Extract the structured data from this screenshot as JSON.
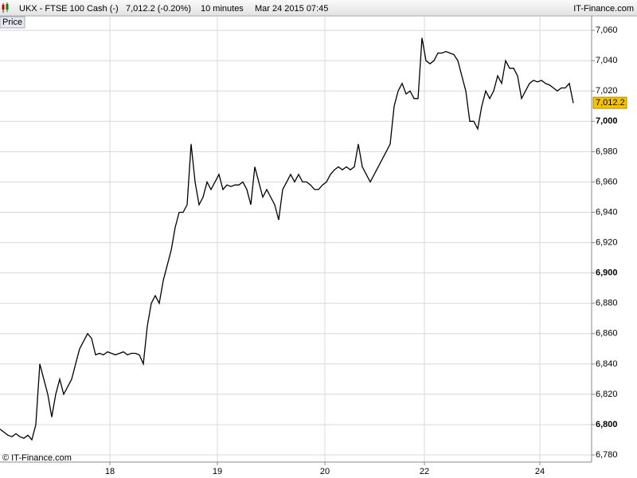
{
  "header": {
    "symbol": "UKX - FTSE 100 Cash (-)",
    "quote": "7,012.2 (-0.20%)",
    "interval": "10 minutes",
    "datetime": "Mar 24 2015 07:45",
    "site": "IT-Finance.com"
  },
  "chart_data": {
    "type": "line",
    "y_axis_label": "Price",
    "watermark": "© IT-Finance.com",
    "color": "#000000",
    "grid": true,
    "x": [
      0,
      1,
      2,
      3,
      4,
      5,
      6,
      7,
      8,
      9,
      10,
      11,
      12,
      13,
      14,
      15,
      16,
      17,
      18,
      19,
      20,
      21,
      22,
      23,
      24,
      25,
      26,
      27,
      28,
      29,
      30,
      31,
      32,
      33,
      34,
      35,
      36,
      37,
      38,
      39,
      40,
      41,
      42,
      43,
      44,
      45,
      46,
      47,
      48,
      49,
      50,
      51,
      52,
      53,
      54,
      55,
      56,
      57,
      58,
      59,
      60,
      61,
      62,
      63,
      64,
      65,
      66,
      67,
      68,
      69,
      70,
      71,
      72,
      73,
      74,
      75,
      76,
      77,
      78,
      79,
      80,
      81,
      82,
      83,
      84,
      85,
      86,
      87,
      88,
      89,
      90,
      91,
      92,
      93,
      94,
      95,
      96,
      97,
      98,
      99,
      100,
      101,
      102,
      103,
      104,
      105,
      106,
      107,
      108,
      109,
      110,
      111,
      112,
      113,
      114,
      115,
      116,
      117,
      118,
      119,
      120,
      121,
      122,
      123,
      124,
      125,
      126,
      127,
      128,
      129,
      130,
      131,
      132,
      133,
      134,
      135,
      136,
      137,
      138,
      139,
      140,
      141,
      142,
      143,
      144
    ],
    "values": [
      6797,
      6795,
      6793,
      6792,
      6794,
      6792,
      6791,
      6793,
      6790,
      6800,
      6840,
      6830,
      6820,
      6805,
      6820,
      6830,
      6820,
      6825,
      6830,
      6840,
      6850,
      6855,
      6860,
      6857,
      6846,
      6847,
      6846,
      6848,
      6847,
      6846,
      6847,
      6848,
      6846,
      6847,
      6847,
      6846,
      6840,
      6865,
      6880,
      6885,
      6880,
      6895,
      6905,
      6915,
      6930,
      6940,
      6940,
      6945,
      6985,
      6960,
      6945,
      6950,
      6960,
      6955,
      6960,
      6965,
      6955,
      6958,
      6957,
      6958,
      6958,
      6960,
      6955,
      6945,
      6970,
      6960,
      6950,
      6955,
      6950,
      6945,
      6935,
      6955,
      6960,
      6965,
      6960,
      6965,
      6960,
      6960,
      6958,
      6955,
      6955,
      6958,
      6960,
      6965,
      6968,
      6970,
      6968,
      6970,
      6968,
      6970,
      6985,
      6970,
      6965,
      6960,
      6965,
      6970,
      6975,
      6980,
      6985,
      7010,
      7020,
      7025,
      7018,
      7020,
      7015,
      7015,
      7055,
      7040,
      7038,
      7040,
      7045,
      7045,
      7046,
      7045,
      7044,
      7040,
      7030,
      7020,
      7000,
      7000,
      6995,
      7010,
      7020,
      7015,
      7020,
      7030,
      7025,
      7040,
      7035,
      7035,
      7030,
      7015,
      7020,
      7025,
      7027,
      7026,
      7027,
      7025,
      7024,
      7022,
      7020,
      7022,
      7022,
      7025,
      7012
    ],
    "last_price": {
      "value": 7012.2,
      "label": "7,012.2"
    },
    "xlim": [
      0,
      148.6
    ],
    "xticks": [
      {
        "value": 27.6,
        "label": "18"
      },
      {
        "value": 54.6,
        "label": "19"
      },
      {
        "value": 81.6,
        "label": "20"
      },
      {
        "value": 106.6,
        "label": "22"
      },
      {
        "value": 135.6,
        "label": "24"
      }
    ],
    "ylim": [
      6775.3,
      7069.5
    ],
    "yticks": [
      {
        "value": 6780,
        "label": "6,780"
      },
      {
        "value": 6800,
        "label": "6,800"
      },
      {
        "value": 6820,
        "label": "6,820"
      },
      {
        "value": 6840,
        "label": "6,840"
      },
      {
        "value": 6860,
        "label": "6,860"
      },
      {
        "value": 6880,
        "label": "6,880"
      },
      {
        "value": 6900,
        "label": "6,900"
      },
      {
        "value": 6920,
        "label": "6,920"
      },
      {
        "value": 6940,
        "label": "6,940"
      },
      {
        "value": 6960,
        "label": "6,960"
      },
      {
        "value": 6980,
        "label": "6,980"
      },
      {
        "value": 7000,
        "label": "7,000"
      },
      {
        "value": 7020,
        "label": "7,020"
      },
      {
        "value": 7040,
        "label": "7,040"
      },
      {
        "value": 7060,
        "label": "7,060"
      }
    ]
  }
}
